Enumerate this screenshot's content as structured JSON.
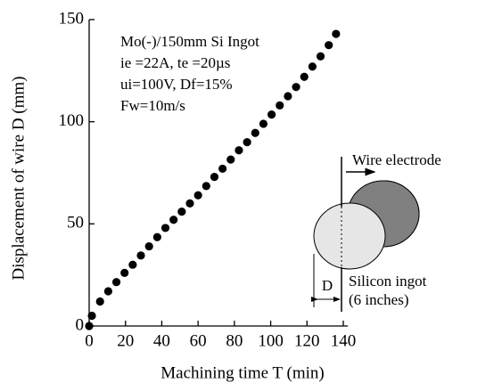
{
  "chart_data": {
    "type": "scatter",
    "xlabel": "Machining time   T   (min)",
    "ylabel": "Displacement of wire  D  (mm)",
    "annotations": [
      "Mo(-)/150mm Si Ingot",
      "ie =22A, te =20µs",
      "ui=100V, Df=15%",
      "Fw=10m/s"
    ],
    "inset_labels": [
      "Wire electrode",
      "Silicon ingot",
      "(6 inches)",
      "D"
    ],
    "color": "#000000",
    "x": [
      0,
      1.5,
      6,
      10.5,
      15,
      19.5,
      24,
      28.5,
      33,
      37.5,
      42,
      46.5,
      51,
      55.5,
      60,
      64.5,
      69,
      73.5,
      78,
      82.5,
      87,
      91.5,
      96,
      100.5,
      105,
      109.5,
      114,
      118.5,
      123,
      127.5,
      132,
      136
    ],
    "values": [
      0,
      5,
      12,
      17,
      21.5,
      26,
      30,
      34.5,
      39,
      43.5,
      48,
      52,
      56,
      60,
      64,
      68.5,
      73,
      77,
      81.5,
      86,
      90,
      94.5,
      99,
      103.5,
      108,
      112.5,
      117,
      122,
      127,
      132,
      137.5,
      143
    ],
    "xlim": [
      0,
      140
    ],
    "xticks": [
      0,
      20,
      40,
      60,
      80,
      100,
      120,
      140
    ],
    "ylim": [
      0,
      150
    ],
    "yticks": [
      0,
      50,
      100,
      150
    ]
  }
}
